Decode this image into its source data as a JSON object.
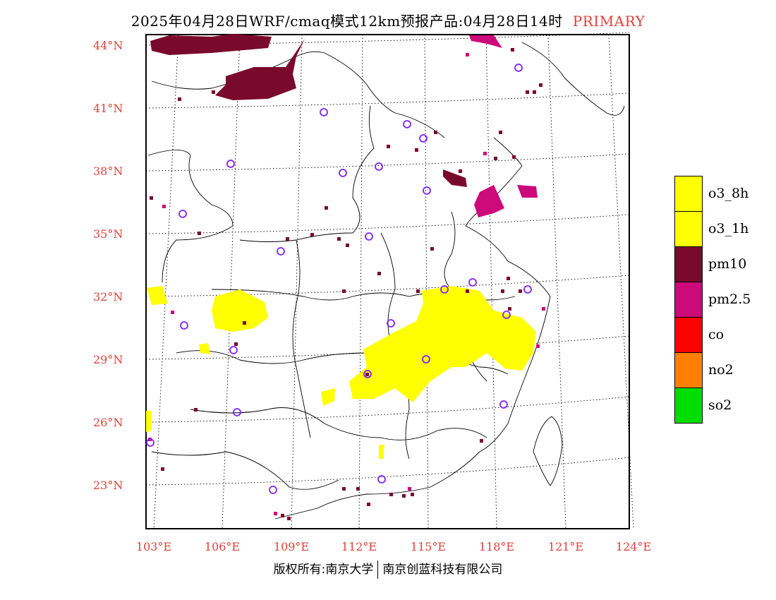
{
  "title": {
    "text": "2025年04月28日WRF/cmaq模式12km预报产品:04月28日14时",
    "tag": "PRIMARY",
    "tag_color": "#e0413a"
  },
  "axes": {
    "lat_labels": [
      "44°N",
      "41°N",
      "38°N",
      "35°N",
      "32°N",
      "29°N",
      "26°N",
      "23°N"
    ],
    "lon_labels": [
      "103°E",
      "106°E",
      "109°E",
      "112°E",
      "115°E",
      "118°E",
      "121°E",
      "124°E"
    ],
    "label_color": "#e0413a"
  },
  "legend": [
    {
      "label": "o3_8h",
      "color": "#ffff00"
    },
    {
      "label": "o3_1h",
      "color": "#ffff00"
    },
    {
      "label": "pm10",
      "color": "#7a0a2d"
    },
    {
      "label": "pm2.5",
      "color": "#cc0a7a"
    },
    {
      "label": "co",
      "color": "#ff0000"
    },
    {
      "label": "no2",
      "color": "#ff8000"
    },
    {
      "label": "so2",
      "color": "#00dd00"
    }
  ],
  "credit": {
    "left": "版权所有:南京大学",
    "right": "南京创蓝科技有限公司"
  },
  "map": {
    "lon_range": [
      103,
      124
    ],
    "lat_range": [
      21,
      44.5
    ],
    "primary_pollutant_regions": [
      {
        "pollutant": "pm10",
        "area": "northern Inner Mongolia / Mongolia border"
      },
      {
        "pollutant": "pm2.5",
        "area": "Shandong peninsula"
      },
      {
        "pollutant": "pm2.5",
        "area": "Hebei–Inner Mongolia border"
      },
      {
        "pollutant": "pm10",
        "area": "Bohai coast"
      },
      {
        "pollutant": "o3_1h",
        "area": "Jiangxi / Anhui / Zhejiang / Hubei"
      },
      {
        "pollutant": "o3_1h",
        "area": "Sichuan basin"
      }
    ]
  }
}
